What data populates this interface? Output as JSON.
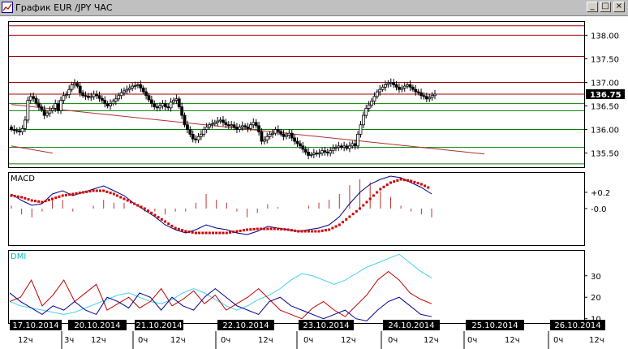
{
  "window": {
    "title": "График EUR /JPY  ЧАС",
    "buttons": {
      "minimize": "_",
      "maximize": "□",
      "close": "×"
    }
  },
  "colors": {
    "background": "#ffffff",
    "frame": "#000000",
    "candle": "#000000",
    "resistance": "#a00000",
    "support": "#008000",
    "trendline": "#b03030",
    "macd_line": "#000080",
    "macd_signal": "#d00000",
    "histogram": "#c03030",
    "dmi_label": "#00c0c0",
    "adx": "#40d0f0",
    "di_plus": "#c00000",
    "di_minus": "#000090",
    "date_box": "#000000",
    "date_text": "#ffffff"
  },
  "chart_data": [
    {
      "type": "candlestick",
      "x_axis": "time",
      "ylim": [
        135.2,
        138.3
      ],
      "y_ticks": [
        "138.00",
        "137.50",
        "137.00",
        "136.50",
        "136.00",
        "135.50"
      ],
      "current_price": "136.75",
      "resistance_lines": [
        138.2,
        138.0,
        137.55,
        137.0,
        136.75
      ],
      "support_lines": [
        136.55,
        136.4,
        136.0,
        135.62,
        135.27
      ],
      "trendlines": [
        {
          "from": [
            0,
            136.53
          ],
          "to": [
            172,
            135.48
          ]
        },
        {
          "from": [
            0,
            135.65
          ],
          "to": [
            15,
            135.5
          ]
        }
      ],
      "close": [
        136.0,
        135.98,
        135.97,
        135.95,
        136.02,
        136.2,
        136.62,
        136.7,
        136.66,
        136.56,
        136.48,
        136.42,
        136.3,
        136.35,
        136.4,
        136.45,
        136.55,
        136.4,
        136.62,
        136.72,
        136.74,
        136.85,
        136.95,
        136.98,
        136.92,
        136.78,
        136.72,
        136.71,
        136.68,
        136.7,
        136.75,
        136.72,
        136.66,
        136.62,
        136.55,
        136.5,
        136.55,
        136.6,
        136.65,
        136.72,
        136.78,
        136.82,
        136.85,
        136.88,
        136.92,
        136.93,
        136.95,
        136.88,
        136.8,
        136.72,
        136.63,
        136.55,
        136.48,
        136.46,
        136.5,
        136.55,
        136.48,
        136.46,
        136.58,
        136.62,
        136.65,
        136.48,
        136.3,
        136.1,
        136.0,
        135.9,
        135.8,
        135.78,
        135.85,
        135.9,
        136.0,
        136.05,
        136.1,
        136.12,
        136.15,
        136.18,
        136.2,
        136.15,
        136.1,
        136.08,
        136.1,
        136.05,
        136.0,
        136.05,
        136.08,
        136.05,
        136.02,
        136.1,
        136.15,
        136.08,
        135.95,
        135.75,
        135.78,
        135.85,
        135.9,
        135.92,
        136.0,
        135.96,
        135.9,
        135.85,
        135.88,
        135.92,
        135.82,
        135.75,
        135.7,
        135.65,
        135.58,
        135.52,
        135.45,
        135.47,
        135.5,
        135.48,
        135.5,
        135.55,
        135.52,
        135.5,
        135.55,
        135.6,
        135.62,
        135.65,
        135.62,
        135.65,
        135.6,
        135.65,
        135.7,
        135.65,
        135.9,
        136.1,
        136.3,
        136.45,
        136.52,
        136.6,
        136.7,
        136.8,
        136.85,
        136.9,
        136.95,
        136.98,
        137.0,
        136.95,
        136.9,
        136.85,
        136.88,
        136.92,
        136.95,
        136.9,
        136.85,
        136.8,
        136.78,
        136.72,
        136.7,
        136.65,
        136.68,
        136.72,
        136.75
      ]
    },
    {
      "type": "line",
      "title": "MACD",
      "ylim": [
        -0.45,
        0.45
      ],
      "y_ticks": [
        "+0.2",
        "-0.0"
      ],
      "series": [
        {
          "role": "macd",
          "values": [
            0.18,
            0.1,
            0.04,
            0.06,
            0.18,
            0.22,
            0.16,
            0.2,
            0.24,
            0.28,
            0.22,
            0.16,
            0.06,
            -0.02,
            -0.1,
            -0.2,
            -0.26,
            -0.3,
            -0.26,
            -0.2,
            -0.24,
            -0.26,
            -0.3,
            -0.32,
            -0.28,
            -0.22,
            -0.24,
            -0.26,
            -0.28,
            -0.26,
            -0.24,
            -0.2,
            -0.1,
            0.06,
            0.2,
            0.3,
            0.36,
            0.4,
            0.38,
            0.32,
            0.26,
            0.18
          ]
        },
        {
          "role": "signal",
          "values": [
            0.16,
            0.14,
            0.1,
            0.08,
            0.12,
            0.16,
            0.18,
            0.2,
            0.22,
            0.22,
            0.18,
            0.12,
            0.06,
            0.0,
            -0.08,
            -0.16,
            -0.24,
            -0.28,
            -0.3,
            -0.3,
            -0.3,
            -0.3,
            -0.28,
            -0.26,
            -0.25,
            -0.25,
            -0.25,
            -0.26,
            -0.28,
            -0.28,
            -0.28,
            -0.26,
            -0.2,
            -0.1,
            0.0,
            0.12,
            0.24,
            0.32,
            0.36,
            0.34,
            0.3,
            0.24
          ]
        }
      ]
    },
    {
      "type": "line",
      "title": "DMI",
      "ylim": [
        8,
        42
      ],
      "y_ticks": [
        "30",
        "20",
        "10"
      ],
      "series": [
        {
          "role": "adx",
          "values": [
            18,
            16,
            15,
            14,
            13,
            12,
            13,
            15,
            17,
            19,
            21,
            22,
            20,
            18,
            17,
            19,
            22,
            24,
            22,
            19,
            16,
            14,
            16,
            19,
            21,
            24,
            28,
            31,
            30,
            28,
            26,
            28,
            31,
            34,
            36,
            38,
            40,
            36,
            32,
            29
          ]
        },
        {
          "role": "di_plus",
          "values": [
            18,
            20,
            28,
            16,
            21,
            28,
            18,
            22,
            26,
            14,
            17,
            20,
            15,
            18,
            24,
            16,
            19,
            23,
            17,
            21,
            14,
            17,
            20,
            24,
            19,
            14,
            12,
            10,
            15,
            18,
            14,
            11,
            16,
            21,
            28,
            32,
            28,
            22,
            19,
            17
          ]
        },
        {
          "role": "di_minus",
          "values": [
            22,
            18,
            15,
            12,
            16,
            14,
            18,
            14,
            12,
            20,
            18,
            15,
            22,
            20,
            14,
            20,
            16,
            14,
            20,
            24,
            20,
            16,
            14,
            12,
            18,
            20,
            16,
            14,
            12,
            10,
            12,
            14,
            10,
            9,
            14,
            18,
            20,
            16,
            12,
            11
          ]
        }
      ]
    }
  ],
  "time_axis": {
    "dates": [
      "17.10.2014",
      "20.10.2014",
      "21.10.2014",
      "22.10.2014",
      "23.10.2014",
      "24.10.2014",
      "25.10.2014",
      "26.10.2014"
    ],
    "hours": [
      "12ч",
      "3ч",
      "12ч",
      "0ч",
      "12ч",
      "0ч",
      "12ч",
      "0ч",
      "12ч",
      "0ч",
      "12ч",
      "0ч",
      "12ч",
      "0ч",
      "12ч",
      "0ч"
    ]
  }
}
